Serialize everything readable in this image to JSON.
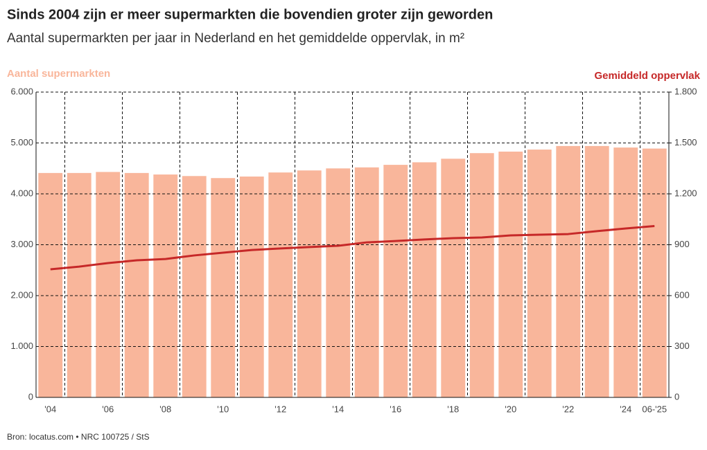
{
  "chart_data": {
    "type": "bar",
    "title": "Sinds 2004 zijn er meer supermarkten die bovendien groter zijn geworden",
    "subtitle": "Aantal supermarkten per jaar in Nederland en het gemiddelde oppervlak, in m²",
    "source": "Bron: locatus.com • NRC 100725 / StS",
    "categories": [
      "'04",
      null,
      "'06",
      null,
      "'08",
      null,
      "'10",
      null,
      "'12",
      null,
      "'14",
      null,
      "'16",
      null,
      "'18",
      null,
      "'20",
      null,
      "'22",
      null,
      "'24",
      "06-'25"
    ],
    "series": [
      {
        "name": "Aantal supermarkten",
        "type": "bar",
        "color": "#f9b69b",
        "values": [
          4410,
          4410,
          4430,
          4410,
          4380,
          4350,
          4310,
          4340,
          4420,
          4460,
          4500,
          4520,
          4570,
          4620,
          4690,
          4800,
          4830,
          4870,
          4940,
          4940,
          4910,
          4890
        ]
      },
      {
        "name": "Gemiddeld oppervlak",
        "type": "line",
        "axis": "y2",
        "color": "#c62828",
        "values": [
          755,
          771,
          792,
          808,
          816,
          837,
          853,
          869,
          878,
          886,
          894,
          914,
          922,
          931,
          939,
          943,
          955,
          959,
          963,
          980,
          996,
          1010
        ]
      }
    ],
    "ylim": [
      0,
      6000
    ],
    "yticks": [
      0,
      {
        "value": 1000,
        "label": "1.000"
      },
      {
        "value": 2000,
        "label": "2.000"
      },
      {
        "value": 3000,
        "label": "3.000"
      },
      {
        "value": 4000,
        "label": "4.000"
      },
      {
        "value": 5000,
        "label": "5.000"
      },
      {
        "value": 6000,
        "label": "6.000"
      }
    ],
    "y2lim": [
      0,
      1800
    ],
    "y2ticks": [
      0,
      300,
      600,
      900,
      {
        "value": 1200,
        "label": "1.200"
      },
      {
        "value": 1500,
        "label": "1.500"
      },
      {
        "value": 1800,
        "label": "1.800"
      }
    ],
    "grid": true
  }
}
